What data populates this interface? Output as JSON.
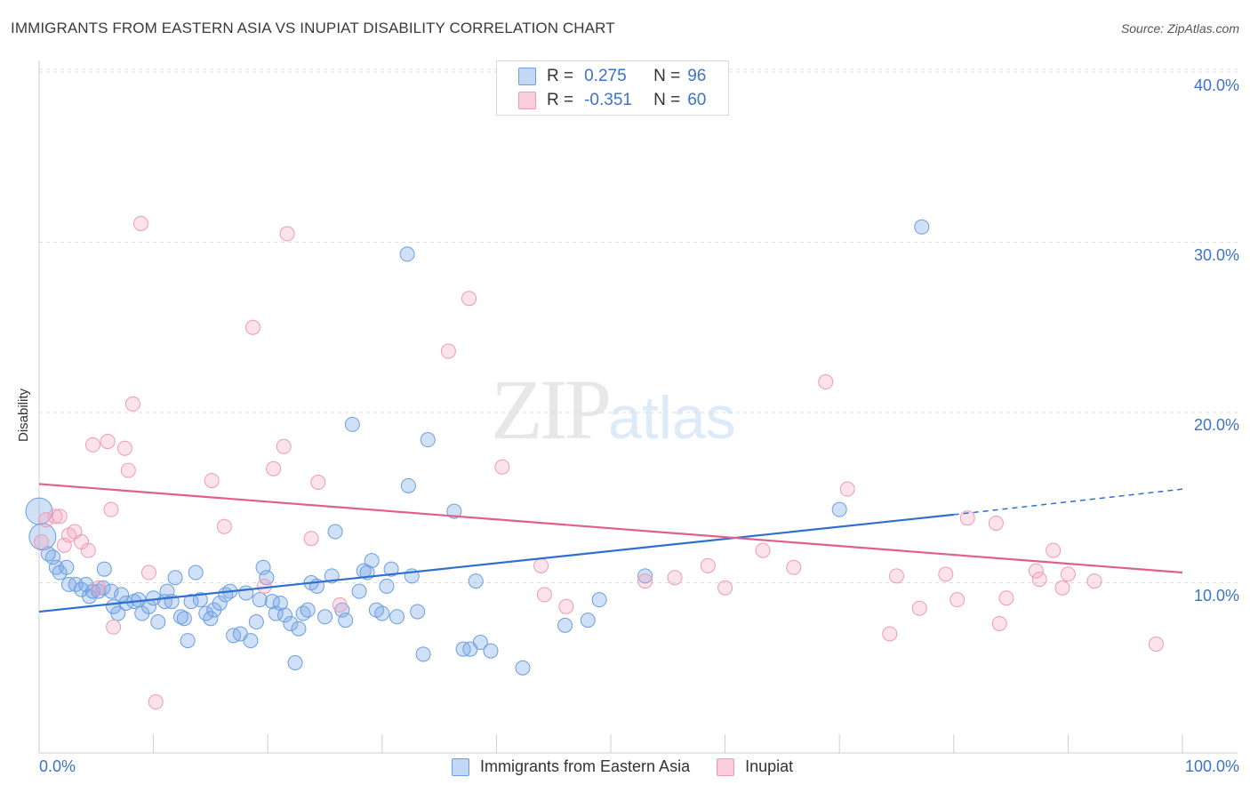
{
  "header": {
    "title": "IMMIGRANTS FROM EASTERN ASIA VS INUPIAT DISABILITY CORRELATION CHART",
    "source": "Source: ZipAtlas.com"
  },
  "watermark": {
    "zip": "ZIP",
    "atlas": "atlas"
  },
  "legend_top": {
    "rows": [
      {
        "r_label": "R =",
        "r_value": "0.275",
        "n_label": "N =",
        "n_value": "96",
        "color": "#a9c8f0"
      },
      {
        "r_label": "R =",
        "r_value": "-0.351",
        "n_label": "N =",
        "n_value": "60",
        "color": "#f7b8cc"
      }
    ]
  },
  "legend_bottom": {
    "items": [
      {
        "label": "Immigrants from Eastern Asia",
        "color": "#a9c8f0"
      },
      {
        "label": "Inupiat",
        "color": "#f7b8cc"
      }
    ]
  },
  "colors": {
    "blue_fill": "rgba(120,165,230,0.35)",
    "blue_stroke": "#6a9ee0",
    "blue_line": "#2f6fd0",
    "pink_fill": "rgba(245,160,190,0.30)",
    "pink_stroke": "#ee9ab5",
    "pink_line": "#e0608a",
    "grid": "#dddddd",
    "tick_label": "#3b73c8"
  },
  "chart_data": {
    "type": "scatter",
    "title": "IMMIGRANTS FROM EASTERN ASIA VS INUPIAT DISABILITY CORRELATION CHART",
    "xlabel": "",
    "ylabel": "Disability",
    "xlim": [
      0,
      100
    ],
    "ylim": [
      0,
      42
    ],
    "x_tick_labels": [
      "0.0%",
      "100.0%"
    ],
    "y_ticks": [
      10,
      20,
      30,
      40
    ],
    "y_tick_labels": [
      "10.0%",
      "20.0%",
      "30.0%",
      "40.0%"
    ],
    "grid": true,
    "series": [
      {
        "name": "Immigrants from Eastern Asia",
        "color": "blue",
        "trend": {
          "x": [
            0,
            80
          ],
          "y": [
            8.3,
            14.0
          ],
          "dashed_to": [
            100,
            15.5
          ]
        },
        "points": [
          [
            0.0,
            14.2
          ],
          [
            0.3,
            12.7
          ],
          [
            1.2,
            11.5
          ],
          [
            1.5,
            10.9
          ],
          [
            1.8,
            10.6
          ],
          [
            2.4,
            10.9
          ],
          [
            2.6,
            9.9
          ],
          [
            3.2,
            9.9
          ],
          [
            3.7,
            9.6
          ],
          [
            4.1,
            9.9
          ],
          [
            4.4,
            9.2
          ],
          [
            4.7,
            9.5
          ],
          [
            5.2,
            9.5
          ],
          [
            5.6,
            9.7
          ],
          [
            5.7,
            10.8
          ],
          [
            6.3,
            9.5
          ],
          [
            6.5,
            8.6
          ],
          [
            6.9,
            8.2
          ],
          [
            7.2,
            9.3
          ],
          [
            7.6,
            8.8
          ],
          [
            8.3,
            8.9
          ],
          [
            8.7,
            9.0
          ],
          [
            9.0,
            8.2
          ],
          [
            9.6,
            8.6
          ],
          [
            10.0,
            9.1
          ],
          [
            10.4,
            7.7
          ],
          [
            11.0,
            8.9
          ],
          [
            11.2,
            9.5
          ],
          [
            11.6,
            8.9
          ],
          [
            11.9,
            10.3
          ],
          [
            12.4,
            8.0
          ],
          [
            12.7,
            7.9
          ],
          [
            13.0,
            6.6
          ],
          [
            13.3,
            8.9
          ],
          [
            13.7,
            10.6
          ],
          [
            14.1,
            9.0
          ],
          [
            14.6,
            8.2
          ],
          [
            15.0,
            7.9
          ],
          [
            15.3,
            8.4
          ],
          [
            15.8,
            8.8
          ],
          [
            16.3,
            9.3
          ],
          [
            16.7,
            9.5
          ],
          [
            17.0,
            6.9
          ],
          [
            17.6,
            7.0
          ],
          [
            18.1,
            9.4
          ],
          [
            18.5,
            6.6
          ],
          [
            19.0,
            7.7
          ],
          [
            19.3,
            9.0
          ],
          [
            19.6,
            10.9
          ],
          [
            19.9,
            10.3
          ],
          [
            20.4,
            8.9
          ],
          [
            20.7,
            8.2
          ],
          [
            21.1,
            8.8
          ],
          [
            21.5,
            8.1
          ],
          [
            22.0,
            7.6
          ],
          [
            22.4,
            5.3
          ],
          [
            22.7,
            7.3
          ],
          [
            23.1,
            8.2
          ],
          [
            23.5,
            8.4
          ],
          [
            23.8,
            10.0
          ],
          [
            24.3,
            9.8
          ],
          [
            25.0,
            8.0
          ],
          [
            25.6,
            10.4
          ],
          [
            25.9,
            13.0
          ],
          [
            26.5,
            8.4
          ],
          [
            26.8,
            7.8
          ],
          [
            27.4,
            19.3
          ],
          [
            28.0,
            9.5
          ],
          [
            28.4,
            10.7
          ],
          [
            28.7,
            10.6
          ],
          [
            29.1,
            11.3
          ],
          [
            29.5,
            8.4
          ],
          [
            30.0,
            8.2
          ],
          [
            30.4,
            9.8
          ],
          [
            30.8,
            10.8
          ],
          [
            31.3,
            8.0
          ],
          [
            32.2,
            29.3
          ],
          [
            32.3,
            15.7
          ],
          [
            32.6,
            10.4
          ],
          [
            33.1,
            8.3
          ],
          [
            33.6,
            5.8
          ],
          [
            34.0,
            18.4
          ],
          [
            36.3,
            14.2
          ],
          [
            37.1,
            6.1
          ],
          [
            37.7,
            6.1
          ],
          [
            38.2,
            10.1
          ],
          [
            38.6,
            6.5
          ],
          [
            39.5,
            6.0
          ],
          [
            42.3,
            5.0
          ],
          [
            46.0,
            7.5
          ],
          [
            48.0,
            7.8
          ],
          [
            49.0,
            9.0
          ],
          [
            53.0,
            10.4
          ],
          [
            70.0,
            14.3
          ],
          [
            77.2,
            30.9
          ],
          [
            0.8,
            11.7
          ]
        ]
      },
      {
        "name": "Inupiat",
        "color": "pink",
        "trend": {
          "x": [
            0,
            100
          ],
          "y": [
            15.8,
            10.6
          ]
        },
        "points": [
          [
            0.2,
            12.4
          ],
          [
            0.6,
            13.7
          ],
          [
            1.4,
            13.9
          ],
          [
            1.8,
            13.9
          ],
          [
            2.2,
            12.2
          ],
          [
            2.6,
            12.8
          ],
          [
            3.1,
            13.0
          ],
          [
            3.7,
            12.4
          ],
          [
            4.3,
            11.9
          ],
          [
            4.7,
            18.1
          ],
          [
            5.2,
            9.7
          ],
          [
            6.0,
            18.3
          ],
          [
            6.3,
            14.3
          ],
          [
            6.5,
            7.4
          ],
          [
            7.5,
            17.9
          ],
          [
            7.8,
            16.6
          ],
          [
            8.2,
            20.5
          ],
          [
            8.9,
            31.1
          ],
          [
            9.6,
            10.6
          ],
          [
            10.2,
            3.0
          ],
          [
            15.1,
            16.0
          ],
          [
            16.2,
            13.3
          ],
          [
            18.7,
            25.0
          ],
          [
            19.7,
            9.8
          ],
          [
            20.5,
            16.7
          ],
          [
            21.4,
            18.0
          ],
          [
            21.7,
            30.5
          ],
          [
            23.8,
            12.6
          ],
          [
            24.4,
            15.9
          ],
          [
            26.3,
            8.7
          ],
          [
            35.8,
            23.6
          ],
          [
            37.6,
            26.7
          ],
          [
            40.5,
            16.8
          ],
          [
            43.9,
            11.0
          ],
          [
            44.2,
            9.3
          ],
          [
            46.1,
            8.6
          ],
          [
            53.0,
            10.1
          ],
          [
            55.6,
            10.3
          ],
          [
            58.5,
            11.0
          ],
          [
            60.0,
            9.7
          ],
          [
            63.3,
            11.9
          ],
          [
            66.0,
            10.9
          ],
          [
            68.8,
            21.8
          ],
          [
            70.7,
            15.5
          ],
          [
            74.4,
            7.0
          ],
          [
            75.0,
            10.4
          ],
          [
            77.0,
            8.5
          ],
          [
            79.3,
            10.5
          ],
          [
            80.3,
            9.0
          ],
          [
            81.2,
            13.8
          ],
          [
            83.7,
            13.5
          ],
          [
            84.0,
            7.6
          ],
          [
            84.6,
            9.1
          ],
          [
            87.2,
            10.7
          ],
          [
            87.5,
            10.2
          ],
          [
            88.7,
            11.9
          ],
          [
            89.5,
            9.7
          ],
          [
            90.0,
            10.5
          ],
          [
            92.3,
            10.1
          ],
          [
            97.7,
            6.4
          ]
        ]
      }
    ]
  }
}
